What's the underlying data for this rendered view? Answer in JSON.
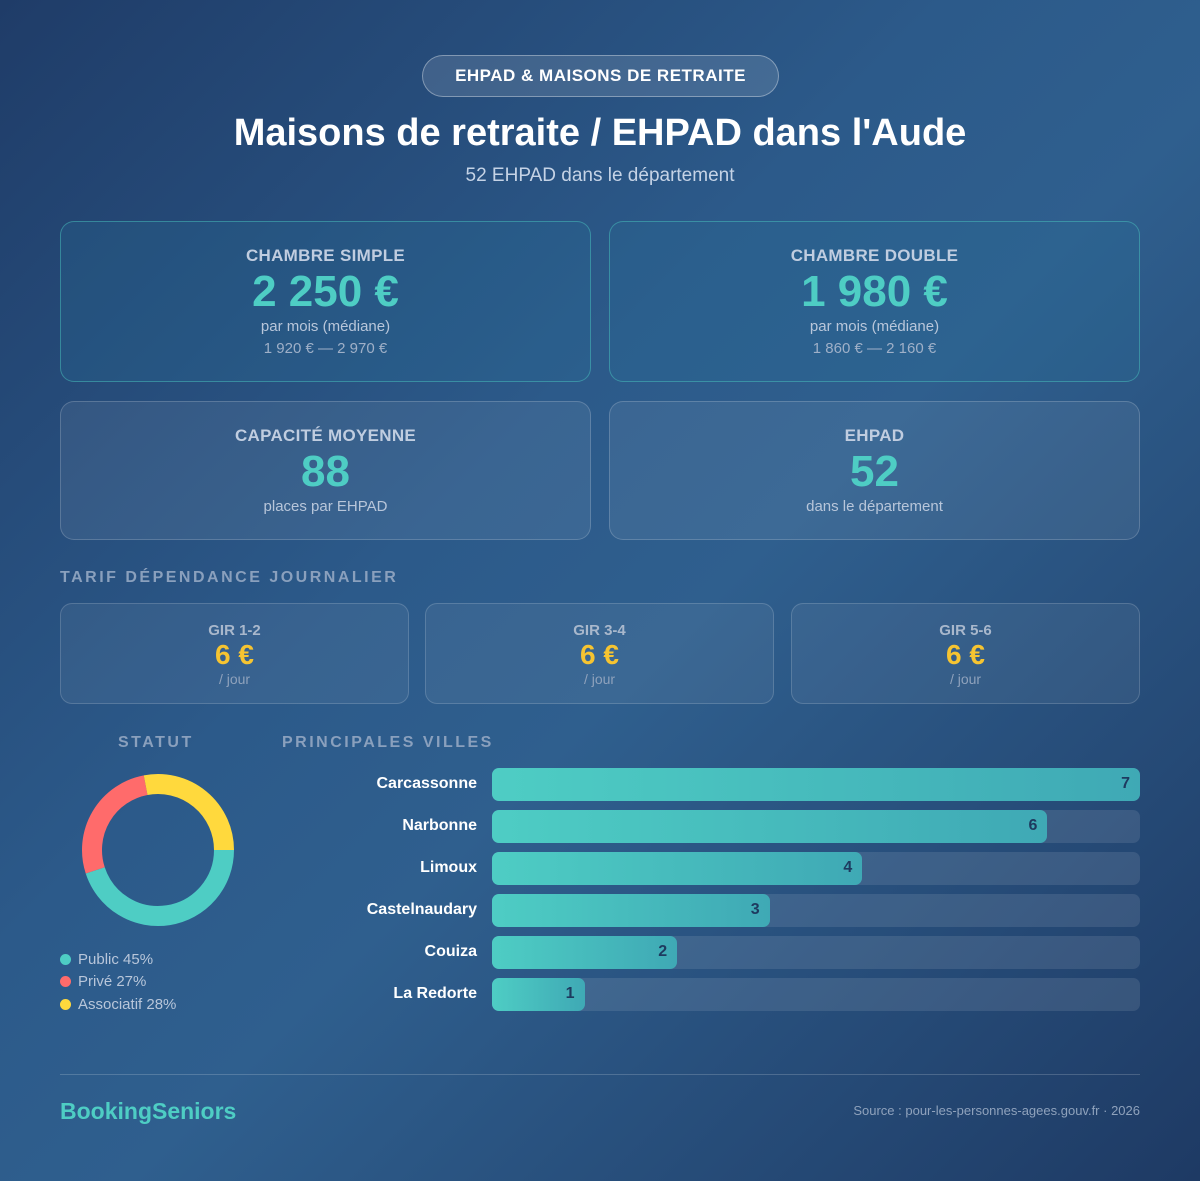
{
  "header": {
    "badge": "EHPAD & MAISONS DE RETRAITE",
    "title": "Maisons de retraite / EHPAD dans l'Aude",
    "subtitle": "52 EHPAD dans le département"
  },
  "cards": [
    {
      "label": "CHAMBRE SIMPLE",
      "value": "2 250 €",
      "note": "par mois (médiane)",
      "range": "1 920 € — 2 970 €"
    },
    {
      "label": "CHAMBRE DOUBLE",
      "value": "1 980 €",
      "note": "par mois (médiane)",
      "range": "1 860 € — 2 160 €"
    },
    {
      "label": "CAPACITÉ MOYENNE",
      "value": "88",
      "note": "places par EHPAD"
    },
    {
      "label": "EHPAD",
      "value": "52",
      "note": "dans le département"
    }
  ],
  "tarif": {
    "title": "TARIF DÉPENDANCE JOURNALIER",
    "items": [
      {
        "label": "GIR 1-2",
        "value": "6 €",
        "unit": "/ jour"
      },
      {
        "label": "GIR 3-4",
        "value": "6 €",
        "unit": "/ jour"
      },
      {
        "label": "GIR 5-6",
        "value": "6 €",
        "unit": "/ jour"
      }
    ]
  },
  "chart_data": [
    {
      "type": "pie",
      "title": "STATUT",
      "donut": true,
      "labels": [
        "Public",
        "Privé",
        "Associatif"
      ],
      "values": [
        45,
        27,
        28
      ],
      "legend_text": [
        "Public 45%",
        "Privé 27%",
        "Associatif 28%"
      ],
      "colors": [
        "#4ecdc4",
        "#ff6b6b",
        "#ffd93d"
      ]
    },
    {
      "type": "bar",
      "orientation": "horizontal",
      "title": "PRINCIPALES VILLES",
      "categories": [
        "Carcassonne",
        "Narbonne",
        "Limoux",
        "Castelnaudary",
        "Couiza",
        "La Redorte"
      ],
      "values": [
        7,
        6,
        4,
        3,
        2,
        1
      ],
      "xlim": [
        0,
        7
      ],
      "color": "#4ecdc4"
    }
  ],
  "footer": {
    "brand": "BookingSeniors",
    "source": "Source : pour-les-personnes-agees.gouv.fr · 2026"
  }
}
